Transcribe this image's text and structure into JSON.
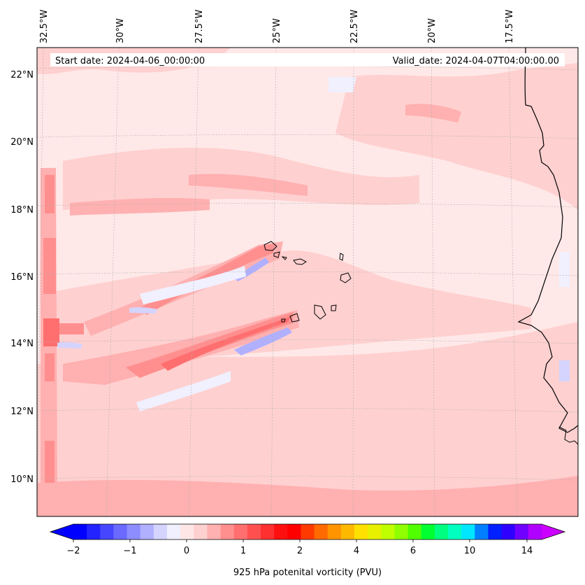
{
  "header": {
    "start_label": "Start date: 2024-04-06_00:00:00",
    "valid_label": "Valid_date: 2024-04-07T04:00:00.00"
  },
  "axes": {
    "lon_labels": [
      "32.5°W",
      "30°W",
      "27.5°W",
      "25°W",
      "22.5°W",
      "20°W",
      "17.5°W"
    ],
    "lat_labels": [
      "22°N",
      "20°N",
      "18°N",
      "16°N",
      "14°N",
      "12°N",
      "10°N"
    ]
  },
  "colorbar": {
    "title": "925 hPa potenital vorticity (PVU)",
    "tick_labels": [
      "−2",
      "−1",
      "0",
      "1",
      "2",
      "4",
      "6",
      "10",
      "14"
    ],
    "colors": [
      "#0000ff",
      "#2323ff",
      "#4646ff",
      "#6a6aff",
      "#8d8dff",
      "#b0b0ff",
      "#d4d4ff",
      "#f0f0ff",
      "#ffe6e6",
      "#ffd0d0",
      "#ffb0b0",
      "#ff8f8f",
      "#ff6f6f",
      "#ff5050",
      "#ff3030",
      "#ff1010",
      "#ff0000",
      "#ff3a00",
      "#ff6a00",
      "#ff9400",
      "#ffb800",
      "#ffe000",
      "#e8f000",
      "#c0ff00",
      "#90ff00",
      "#50ff00",
      "#00ff30",
      "#00ff80",
      "#00ffc0",
      "#00e6ff",
      "#0080ff",
      "#0020ff",
      "#3000ff",
      "#7000ff",
      "#b000ff"
    ],
    "extend_low_color": "#0000ff",
    "extend_high_color": "#cc00ff"
  },
  "map": {
    "background_color": "#ffe8e8",
    "coast_color": "#000000"
  }
}
